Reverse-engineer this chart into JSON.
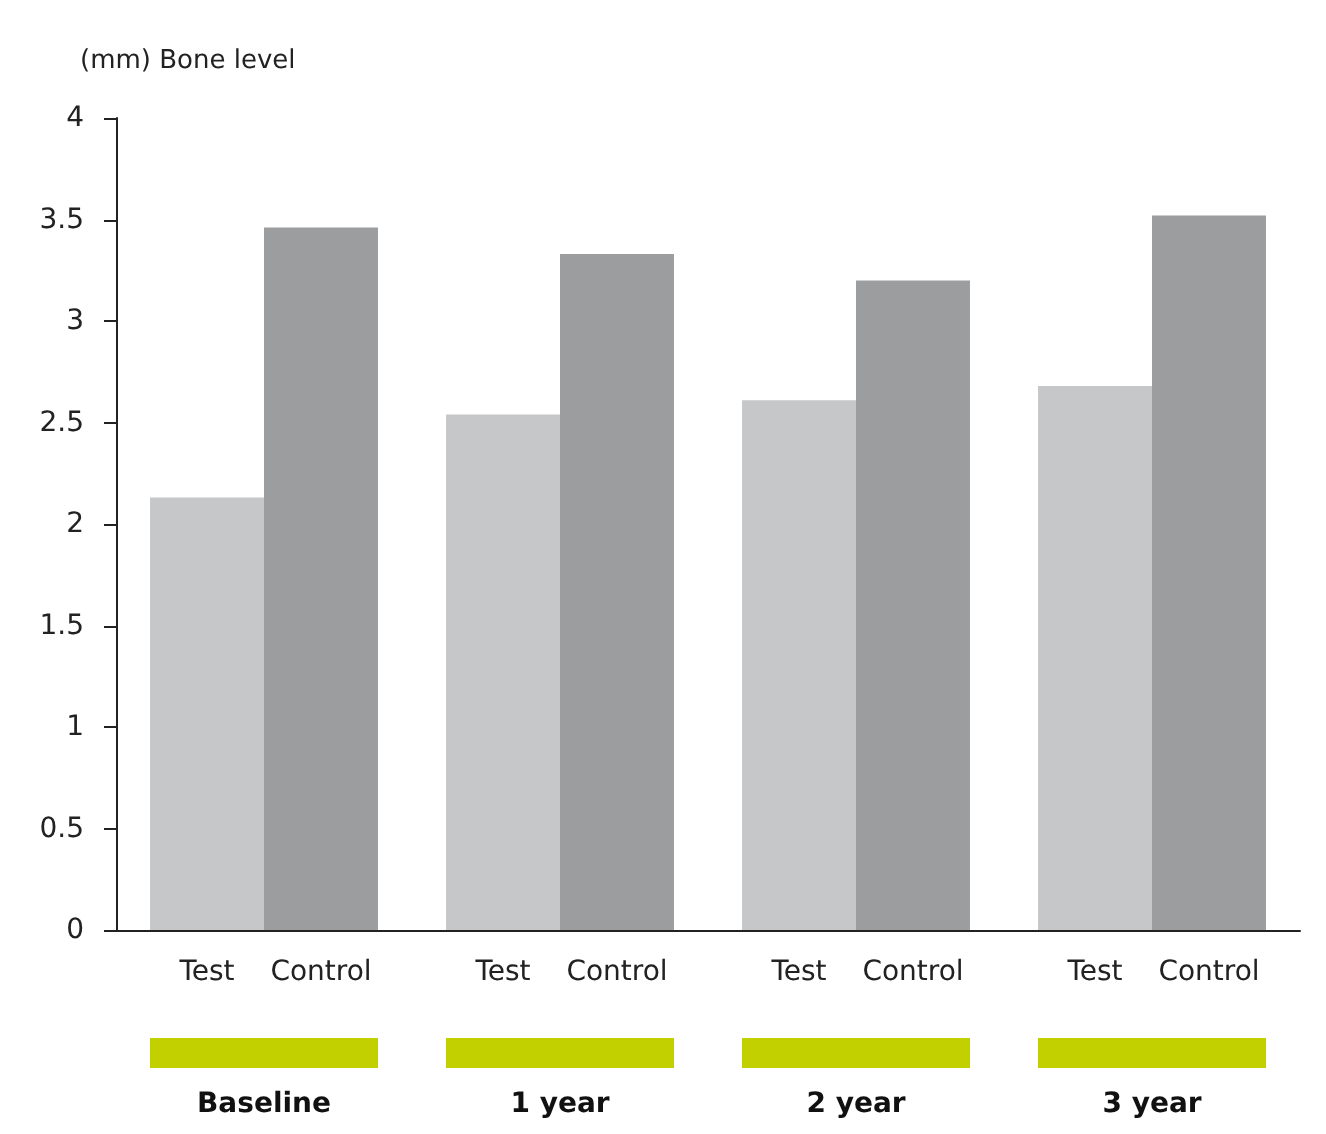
{
  "chart_data": {
    "type": "bar",
    "ylabel": "(mm) Bone level",
    "categories": [
      "Baseline",
      "1 year",
      "2 year",
      "3 year"
    ],
    "series": [
      {
        "name": "Test",
        "color": "#c6c7c9",
        "values": [
          2.13,
          2.54,
          2.61,
          2.68
        ]
      },
      {
        "name": "Control",
        "color": "#9c9d9f",
        "values": [
          3.46,
          3.33,
          3.2,
          3.52
        ]
      }
    ],
    "ylim": [
      0,
      4
    ],
    "yticks": [
      0,
      0.5,
      1,
      1.5,
      2,
      2.5,
      3,
      3.5,
      4
    ],
    "grid": false,
    "legend": false
  }
}
